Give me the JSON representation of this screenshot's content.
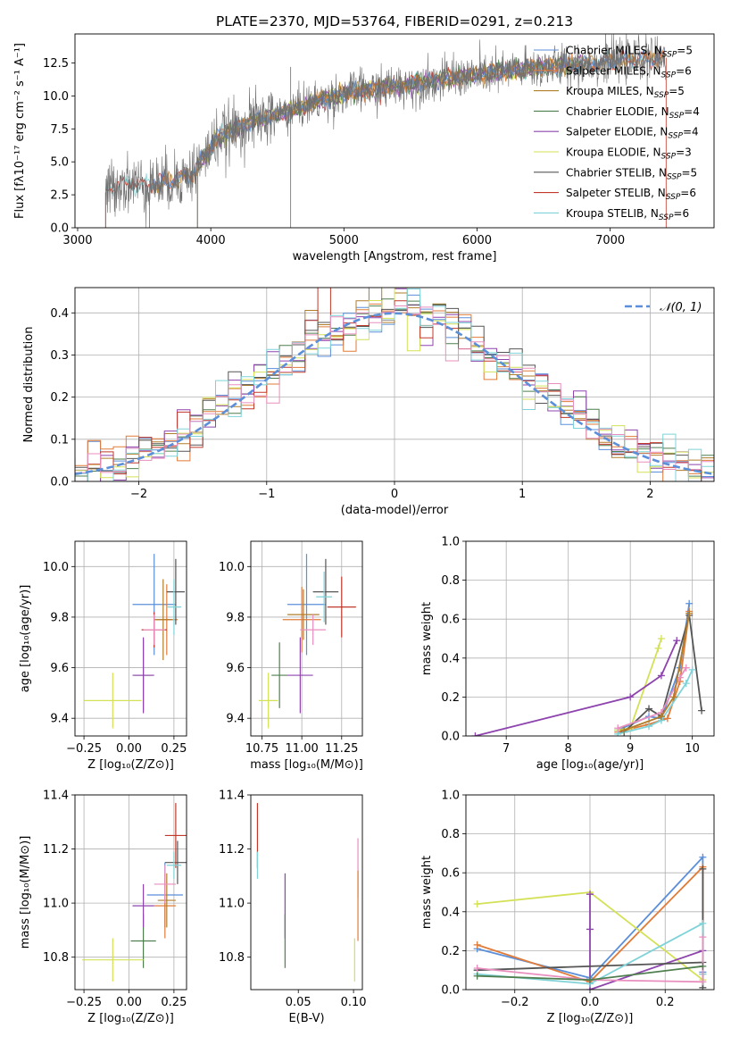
{
  "colors": {
    "Chabrier MILES": "#5b8fd9",
    "Salpeter MILES": "#e07b39",
    "Kroupa MILES": "#b07d2a",
    "Chabrier ELODIE": "#4f7f4f",
    "Salpeter ELODIE": "#8e44ad",
    "Kroupa ELODIE": "#d4e157",
    "Chabrier STELIB": "#555555",
    "Salpeter STELIB": "#c0392b",
    "Kroupa STELIB": "#7fd3d8",
    "normal_curve": "#5b8fd9",
    "pink": "#e88fbf"
  },
  "chart_data": [
    {
      "type": "line",
      "id": "spectrum",
      "title": "PLATE=2370, MJD=53764, FIBERID=0291, z=0.213",
      "xlabel": "wavelength [Angstrom, rest frame]",
      "ylabel": "Flux [fλ10⁻¹⁷ erg cm⁻² s⁻¹ A⁻¹]",
      "xlim": [
        2980,
        7780
      ],
      "ylim": [
        0,
        14.7
      ],
      "xticks": [
        3000,
        4000,
        5000,
        6000,
        7000
      ],
      "yticks": [
        0.0,
        2.5,
        5.0,
        7.5,
        10.0,
        12.5
      ],
      "grid": false,
      "legend_position": "top-right",
      "legend": [
        {
          "model": "Chabrier MILES",
          "label": "Chabrier MILES, N",
          "sub": "SSP",
          "eq": "=5"
        },
        {
          "model": "Salpeter MILES",
          "label": "Salpeter MILES, N",
          "sub": "SSP",
          "eq": "=6"
        },
        {
          "model": "Kroupa MILES",
          "label": "Kroupa MILES, N",
          "sub": "SSP",
          "eq": "=5"
        },
        {
          "model": "Chabrier ELODIE",
          "label": "Chabrier ELODIE, N",
          "sub": "SSP",
          "eq": "=4"
        },
        {
          "model": "Salpeter ELODIE",
          "label": "Salpeter ELODIE, N",
          "sub": "SSP",
          "eq": "=4"
        },
        {
          "model": "Kroupa ELODIE",
          "label": "Kroupa ELODIE, N",
          "sub": "SSP",
          "eq": "=3"
        },
        {
          "model": "Chabrier STELIB",
          "label": "Chabrier STELIB, N",
          "sub": "SSP",
          "eq": "=5"
        },
        {
          "model": "Salpeter STELIB",
          "label": "Salpeter STELIB, N",
          "sub": "SSP",
          "eq": "=6"
        },
        {
          "model": "Kroupa STELIB",
          "label": "Kroupa STELIB, N",
          "sub": "SSP",
          "eq": "=6"
        }
      ],
      "continuum": [
        [
          3200,
          2.6
        ],
        [
          3300,
          3.4
        ],
        [
          3500,
          3.3
        ],
        [
          3700,
          3.5
        ],
        [
          3850,
          4.1
        ],
        [
          3950,
          5.3
        ],
        [
          4050,
          6.8
        ],
        [
          4300,
          8.0
        ],
        [
          4600,
          8.9
        ],
        [
          5000,
          10.2
        ],
        [
          5500,
          10.9
        ],
        [
          6000,
          11.6
        ],
        [
          6500,
          12.2
        ],
        [
          7000,
          12.6
        ],
        [
          7400,
          12.9
        ]
      ],
      "data_range": [
        3210,
        7420
      ],
      "model_ranges": {
        "Chabrier MILES": [
          3540,
          7410
        ],
        "Salpeter MILES": [
          3540,
          7410
        ],
        "Kroupa MILES": [
          3540,
          7410
        ],
        "Chabrier ELODIE": [
          3900,
          6800
        ],
        "Salpeter ELODIE": [
          3900,
          6800
        ],
        "Kroupa ELODIE": [
          3900,
          6800
        ],
        "Chabrier STELIB": [
          3210,
          7410
        ],
        "Salpeter STELIB": [
          3210,
          7410
        ],
        "Kroupa STELIB": [
          3210,
          7410
        ]
      },
      "spikes": [
        [
          4600,
          0.0,
          12.2
        ]
      ]
    },
    {
      "type": "histogram",
      "id": "residuals",
      "xlabel": "(data-model)/error",
      "ylabel": "Normed distribution",
      "xlim": [
        -2.5,
        2.5
      ],
      "ylim": [
        0,
        0.46
      ],
      "xticks": [
        -2,
        -1,
        0,
        1,
        2
      ],
      "yticks": [
        0.0,
        0.1,
        0.2,
        0.3,
        0.4
      ],
      "grid": true,
      "bin_width": 0.1,
      "legend": [
        {
          "label": "𝒩(0, 1)",
          "style": "dashed"
        }
      ],
      "reference_curve": "normal(0,1)"
    },
    {
      "type": "errorbar",
      "id": "age-vs-Z",
      "xlabel": "Z [log₁₀(Z/Z⊙)]",
      "ylabel": "age  [log₁₀(age/yr)]",
      "xlim": [
        -0.3,
        0.32
      ],
      "ylim": [
        9.33,
        10.1
      ],
      "xticks": [
        -0.25,
        0.0,
        0.25
      ],
      "yticks": [
        9.4,
        9.6,
        9.8,
        10.0
      ],
      "grid": true,
      "points": [
        {
          "model": "Chabrier MILES",
          "x": 0.14,
          "xerr": 0.12,
          "y": 9.85,
          "yerr": 0.2
        },
        {
          "model": "Salpeter MILES",
          "x": 0.21,
          "xerr": 0.06,
          "y": 9.79,
          "yerr": 0.14
        },
        {
          "model": "Kroupa MILES",
          "x": 0.19,
          "xerr": 0.05,
          "y": 9.79,
          "yerr": 0.16
        },
        {
          "model": "Chabrier ELODIE",
          "x": 0.08,
          "xerr": 0.05,
          "y": 9.57,
          "yerr": 0.14
        },
        {
          "model": "Salpeter ELODIE",
          "x": 0.08,
          "xerr": 0.06,
          "y": 9.57,
          "yerr": 0.15
        },
        {
          "model": "Kroupa ELODIE",
          "x": -0.09,
          "xerr": 0.16,
          "y": 9.47,
          "yerr": 0.11
        },
        {
          "model": "Chabrier STELIB",
          "x": 0.26,
          "xerr": 0.05,
          "y": 9.9,
          "yerr": 0.13
        },
        {
          "model": "Salpeter STELIB",
          "x": 0.14,
          "xerr": 0.07,
          "y": 9.75,
          "yerr": 0.07
        },
        {
          "model": "Kroupa STELIB",
          "x": 0.25,
          "xerr": 0.04,
          "y": 9.84,
          "yerr": 0.11
        },
        {
          "model": "pink",
          "x": 0.14,
          "xerr": 0.06,
          "y": 9.75,
          "yerr": 0.06
        }
      ]
    },
    {
      "type": "errorbar",
      "id": "age-vs-mass",
      "xlabel": "mass [log₁₀(M/M⊙)]",
      "ylabel": "",
      "xlim": [
        10.68,
        11.38
      ],
      "ylim": [
        9.33,
        10.1
      ],
      "xticks": [
        10.75,
        11.0,
        11.25
      ],
      "yticks": [
        9.4,
        9.6,
        9.8,
        10.0
      ],
      "grid": true,
      "points": [
        {
          "model": "Chabrier MILES",
          "x": 11.03,
          "xerr": 0.12,
          "y": 9.85,
          "yerr": 0.2
        },
        {
          "model": "Salpeter MILES",
          "x": 11.0,
          "xerr": 0.12,
          "y": 9.79,
          "yerr": 0.13
        },
        {
          "model": "Kroupa MILES",
          "x": 11.01,
          "xerr": 0.1,
          "y": 9.81,
          "yerr": 0.1
        },
        {
          "model": "Chabrier ELODIE",
          "x": 10.86,
          "xerr": 0.05,
          "y": 9.57,
          "yerr": 0.13
        },
        {
          "model": "Salpeter ELODIE",
          "x": 10.99,
          "xerr": 0.08,
          "y": 9.57,
          "yerr": 0.15
        },
        {
          "model": "Kroupa ELODIE",
          "x": 10.79,
          "xerr": 0.06,
          "y": 9.47,
          "yerr": 0.11
        },
        {
          "model": "Chabrier STELIB",
          "x": 11.15,
          "xerr": 0.08,
          "y": 9.9,
          "yerr": 0.13
        },
        {
          "model": "Salpeter STELIB",
          "x": 11.25,
          "xerr": 0.09,
          "y": 9.84,
          "yerr": 0.12
        },
        {
          "model": "Kroupa STELIB",
          "x": 11.14,
          "xerr": 0.05,
          "y": 9.88,
          "yerr": 0.1
        },
        {
          "model": "pink",
          "x": 11.07,
          "xerr": 0.08,
          "y": 9.75,
          "yerr": 0.06
        }
      ]
    },
    {
      "type": "line",
      "id": "mass-weight-vs-age",
      "xlabel": "age  [log₁₀(age/yr)]",
      "ylabel": "mass weight",
      "xlim": [
        6.35,
        10.35
      ],
      "ylim": [
        0,
        1
      ],
      "xticks": [
        7,
        8,
        9,
        10
      ],
      "yticks": [
        0.0,
        0.2,
        0.4,
        0.6,
        0.8,
        1.0
      ],
      "grid": true,
      "series": [
        {
          "model": "Chabrier MILES",
          "x": [
            8.8,
            9.3,
            9.5,
            9.8,
            9.95
          ],
          "y": [
            0.03,
            0.1,
            0.09,
            0.35,
            0.68
          ]
        },
        {
          "model": "Salpeter MILES",
          "x": [
            8.8,
            9.3,
            9.6,
            9.8,
            9.95
          ],
          "y": [
            0.02,
            0.06,
            0.09,
            0.28,
            0.64
          ]
        },
        {
          "model": "Kroupa ELODIE",
          "x": [
            8.8,
            9.0,
            9.45,
            9.5
          ],
          "y": [
            0.03,
            0.04,
            0.45,
            0.5
          ]
        },
        {
          "model": "Salpeter ELODIE",
          "x": [
            6.5,
            9.0,
            9.5,
            9.75
          ],
          "y": [
            0.0,
            0.2,
            0.31,
            0.49
          ]
        },
        {
          "model": "Chabrier STELIB",
          "x": [
            8.9,
            9.3,
            9.5,
            9.95,
            10.15
          ],
          "y": [
            0.02,
            0.14,
            0.1,
            0.62,
            0.13
          ]
        },
        {
          "model": "Kroupa STELIB",
          "x": [
            8.8,
            9.3,
            9.5,
            9.9,
            10.0
          ],
          "y": [
            0.01,
            0.05,
            0.08,
            0.27,
            0.34
          ]
        },
        {
          "model": "pink",
          "x": [
            8.8,
            9.5,
            9.8,
            9.9
          ],
          "y": [
            0.04,
            0.12,
            0.3,
            0.35
          ]
        },
        {
          "model": "Kroupa MILES",
          "x": [
            8.9,
            9.5,
            9.7,
            9.95
          ],
          "y": [
            0.03,
            0.1,
            0.2,
            0.63
          ]
        }
      ]
    },
    {
      "type": "errorbar",
      "id": "mass-vs-Z",
      "xlabel": "Z [log₁₀(Z/Z⊙)]",
      "ylabel": "mass [log₁₀(M/M⊙)]",
      "xlim": [
        -0.3,
        0.32
      ],
      "ylim": [
        10.68,
        11.4
      ],
      "xticks": [
        -0.25,
        0.0,
        0.25
      ],
      "yticks": [
        10.8,
        11.0,
        11.2,
        11.4
      ],
      "grid": true,
      "points": [
        {
          "model": "Chabrier MILES",
          "x": 0.2,
          "xerr": 0.1,
          "y": 11.03,
          "yerr": 0.12
        },
        {
          "model": "Salpeter MILES",
          "x": 0.2,
          "xerr": 0.06,
          "y": 10.99,
          "yerr": 0.12
        },
        {
          "model": "Kroupa MILES",
          "x": 0.21,
          "xerr": 0.05,
          "y": 11.01,
          "yerr": 0.1
        },
        {
          "model": "Chabrier ELODIE",
          "x": 0.08,
          "xerr": 0.07,
          "y": 10.86,
          "yerr": 0.1
        },
        {
          "model": "Salpeter ELODIE",
          "x": 0.08,
          "xerr": 0.06,
          "y": 10.99,
          "yerr": 0.08
        },
        {
          "model": "Kroupa ELODIE",
          "x": -0.09,
          "xerr": 0.17,
          "y": 10.79,
          "yerr": 0.08
        },
        {
          "model": "Chabrier STELIB",
          "x": 0.27,
          "xerr": 0.07,
          "y": 11.15,
          "yerr": 0.08
        },
        {
          "model": "Salpeter STELIB",
          "x": 0.26,
          "xerr": 0.06,
          "y": 11.25,
          "yerr": 0.12
        },
        {
          "model": "Kroupa STELIB",
          "x": 0.25,
          "xerr": 0.04,
          "y": 11.14,
          "yerr": 0.05
        },
        {
          "model": "pink",
          "x": 0.2,
          "xerr": 0.06,
          "y": 11.07,
          "yerr": 0.07
        }
      ]
    },
    {
      "type": "errorbar",
      "id": "mass-vs-EBV",
      "xlabel": "E(B-V)",
      "ylabel": "",
      "xlim": [
        0.007,
        0.108
      ],
      "ylim": [
        10.68,
        11.4
      ],
      "xticks": [
        0.05,
        0.1
      ],
      "yticks": [
        10.8,
        11.0,
        11.2,
        11.4
      ],
      "grid": false,
      "points": [
        {
          "model": "Salpeter STELIB",
          "x": 0.013,
          "y": 11.25,
          "yerr": 0.12
        },
        {
          "model": "Kroupa STELIB",
          "x": 0.013,
          "y": 11.14,
          "yerr": 0.05
        },
        {
          "model": "Salpeter ELODIE",
          "x": 0.038,
          "y": 10.99,
          "yerr": 0.12
        },
        {
          "model": "Chabrier ELODIE",
          "x": 0.038,
          "y": 10.86,
          "yerr": 0.1
        },
        {
          "model": "Kroupa ELODIE",
          "x": 0.101,
          "y": 10.79,
          "yerr": 0.08
        },
        {
          "model": "pink",
          "x": 0.104,
          "y": 11.13,
          "yerr": 0.11
        },
        {
          "model": "Salpeter MILES",
          "x": 0.104,
          "y": 10.99,
          "yerr": 0.13
        }
      ]
    },
    {
      "type": "line",
      "id": "mass-weight-vs-Z",
      "xlabel": "Z [log₁₀(Z/Z⊙)]",
      "ylabel": "mass weight",
      "xlim": [
        -0.33,
        0.33
      ],
      "ylim": [
        0,
        1
      ],
      "xticks": [
        -0.2,
        0.0,
        0.2
      ],
      "yticks": [
        0.0,
        0.2,
        0.4,
        0.6,
        0.8,
        1.0
      ],
      "grid": true,
      "series": [
        {
          "model": "Chabrier MILES",
          "x": [
            -0.3,
            0.0,
            0.3,
            0.3
          ],
          "y": [
            0.21,
            0.06,
            0.68,
            0.09
          ]
        },
        {
          "model": "Salpeter MILES",
          "x": [
            -0.3,
            0.0,
            0.3,
            0.3
          ],
          "y": [
            0.23,
            0.04,
            0.63,
            0.08
          ]
        },
        {
          "model": "Kroupa ELODIE",
          "x": [
            -0.3,
            0.0,
            0.3
          ],
          "y": [
            0.44,
            0.5,
            0.05
          ]
        },
        {
          "model": "Salpeter ELODIE",
          "x": [
            0.0,
            0.0,
            0.0,
            0.3
          ],
          "y": [
            0.49,
            0.31,
            0.0,
            0.2
          ]
        },
        {
          "model": "Chabrier STELIB",
          "x": [
            -0.3,
            0.3,
            0.3,
            0.3
          ],
          "y": [
            0.1,
            0.14,
            0.62,
            0.01
          ]
        },
        {
          "model": "Kroupa STELIB",
          "x": [
            -0.3,
            0.0,
            0.3,
            0.3
          ],
          "y": [
            0.08,
            0.03,
            0.34,
            0.08
          ]
        },
        {
          "model": "pink",
          "x": [
            -0.3,
            0.0,
            0.3,
            0.3
          ],
          "y": [
            0.11,
            0.05,
            0.04,
            0.27
          ]
        },
        {
          "model": "Chabrier ELODIE",
          "x": [
            -0.3,
            0.0,
            0.3
          ],
          "y": [
            0.07,
            0.05,
            0.12
          ]
        }
      ]
    }
  ]
}
